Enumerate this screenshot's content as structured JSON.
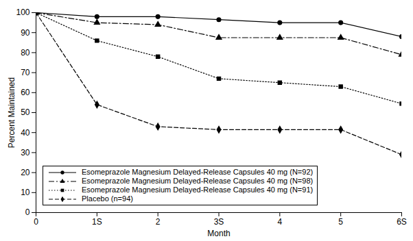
{
  "chart_data": {
    "type": "line",
    "x_label": "Month",
    "y_label": "Percent Maintained",
    "x": [
      0,
      1,
      2,
      3,
      4,
      5,
      6
    ],
    "xlim": [
      0,
      6
    ],
    "xticks": [
      0,
      {
        "value": 1,
        "label": "1S"
      },
      2,
      {
        "value": 3,
        "label": "3S"
      },
      4,
      5,
      {
        "value": 6,
        "label": "6S"
      }
    ],
    "ylim": [
      0,
      100
    ],
    "yticks": [
      0,
      10,
      20,
      30,
      40,
      50,
      60,
      70,
      80,
      90,
      100
    ],
    "grid": false,
    "legend": "lower left",
    "series": [
      {
        "name": "Esomeprazole Magnesium Delayed-Release Capsules 40 mg (N=92)",
        "color": "#000000",
        "marker": "circle",
        "line_style": "solid",
        "values": [
          100,
          98,
          98,
          96.5,
          95,
          95,
          88
        ]
      },
      {
        "name": "Esomeprazole Magnesium Delayed-Release Capsules 40 mg (N=98)",
        "color": "#000000",
        "marker": "triangle",
        "line_style": "dashdot",
        "values": [
          100,
          95,
          94,
          87.5,
          87.5,
          87.5,
          79
        ]
      },
      {
        "name": "Esomeprazole Magnesium Delayed-Release Capsules 40 mg (N=91)",
        "color": "#000000",
        "marker": "square",
        "line_style": "dotted",
        "values": [
          100,
          86,
          78,
          67,
          65,
          63,
          54.5
        ]
      },
      {
        "name": "Placebo (n=94)",
        "color": "#000000",
        "marker": "diamond",
        "line_style": "dashed",
        "values": [
          100,
          54,
          43,
          41.5,
          41.5,
          41.5,
          29
        ]
      }
    ]
  }
}
